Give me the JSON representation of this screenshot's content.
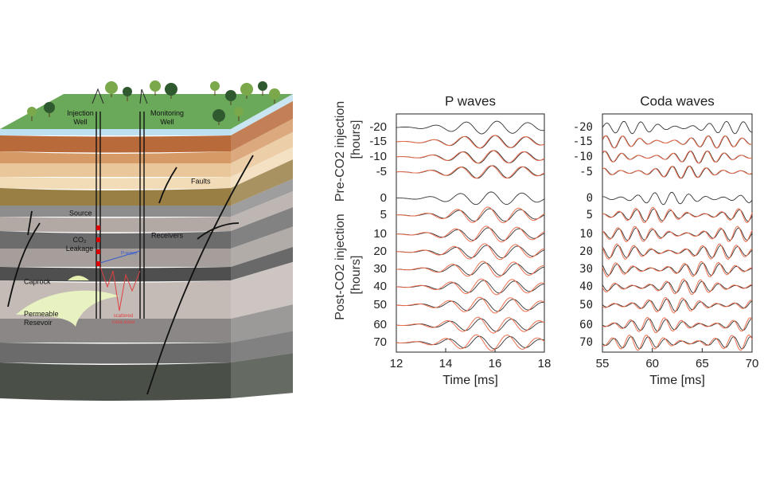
{
  "diagram": {
    "injection_well": [
      "Injection",
      "Well"
    ],
    "monitoring_well": [
      "Monitoring",
      "Well"
    ],
    "faults": "Faults",
    "source": "Source",
    "receivers": "Receivers",
    "leakage": [
      "CO₂",
      "Leakage"
    ],
    "p_wave": "P-wave",
    "caprock": "Caprock",
    "reservoir": [
      "Permeable",
      "Resevoir"
    ],
    "coda": [
      "scattered",
      "coda wave"
    ]
  },
  "figure": {
    "ylabel_pre": "Pre-CO2 injection",
    "ylabel_post": "Post-CO2 injection",
    "ylabel_unit": "[hours]",
    "rows": [
      "-20",
      "-15",
      "-10",
      "-5",
      "0",
      "5",
      "10",
      "20",
      "30",
      "40",
      "50",
      "60",
      "70"
    ],
    "panels": [
      {
        "title": "P waves",
        "xlabel": "Time [ms]",
        "xlim": [
          12,
          18
        ],
        "xticks": [
          12,
          14,
          16,
          18
        ]
      },
      {
        "title": "Coda waves",
        "xlabel": "Time [ms]",
        "xlim": [
          55,
          70
        ],
        "xticks": [
          55,
          60,
          65,
          70
        ]
      }
    ]
  }
}
